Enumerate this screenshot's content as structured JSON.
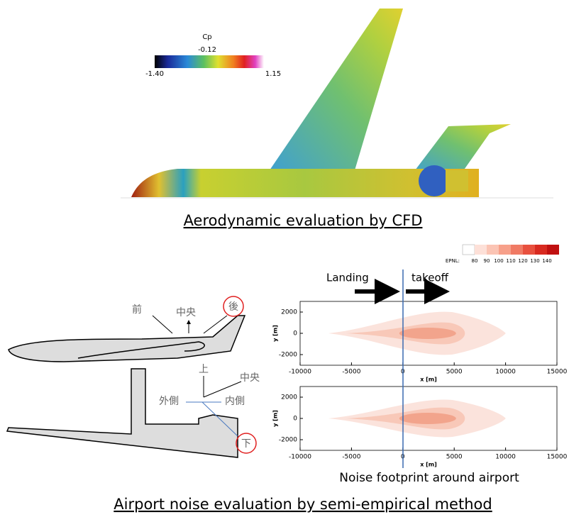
{
  "cfd": {
    "colorbar": {
      "title": "Cp",
      "min": "-1.40",
      "mid": "-0.12",
      "max": "1.15"
    },
    "caption": "Aerodynamic  evaluation by CFD"
  },
  "diagram": {
    "front": "前",
    "center": "中央",
    "rear": "後",
    "upper": "上",
    "center2": "中央",
    "outer": "外側",
    "inner": "内側",
    "lower": "下"
  },
  "noise": {
    "legend": {
      "title": "EPNL:",
      "levels": [
        80,
        90,
        100,
        110,
        120,
        130,
        140
      ]
    },
    "landing": "Landing",
    "takeoff": "takeoff",
    "plots": [
      {
        "xlabel": "x [m]",
        "ylabel": "y [m]",
        "xlim": [
          -10000,
          15000
        ],
        "ylim": [
          -3000,
          3000
        ],
        "xticks": [
          -10000,
          -5000,
          0,
          5000,
          10000,
          15000
        ],
        "yticks": [
          2000,
          0,
          -2000
        ]
      },
      {
        "xlabel": "x [m]",
        "ylabel": "y [m]",
        "xlim": [
          -10000,
          15000
        ],
        "ylim": [
          -3000,
          3000
        ],
        "xticks": [
          -10000,
          -5000,
          0,
          5000,
          10000,
          15000
        ],
        "yticks": [
          2000,
          0,
          -2000
        ]
      }
    ],
    "caption": "Noise footprint around airport"
  },
  "caption": "Airport  noise evaluation by semi-empirical method"
}
